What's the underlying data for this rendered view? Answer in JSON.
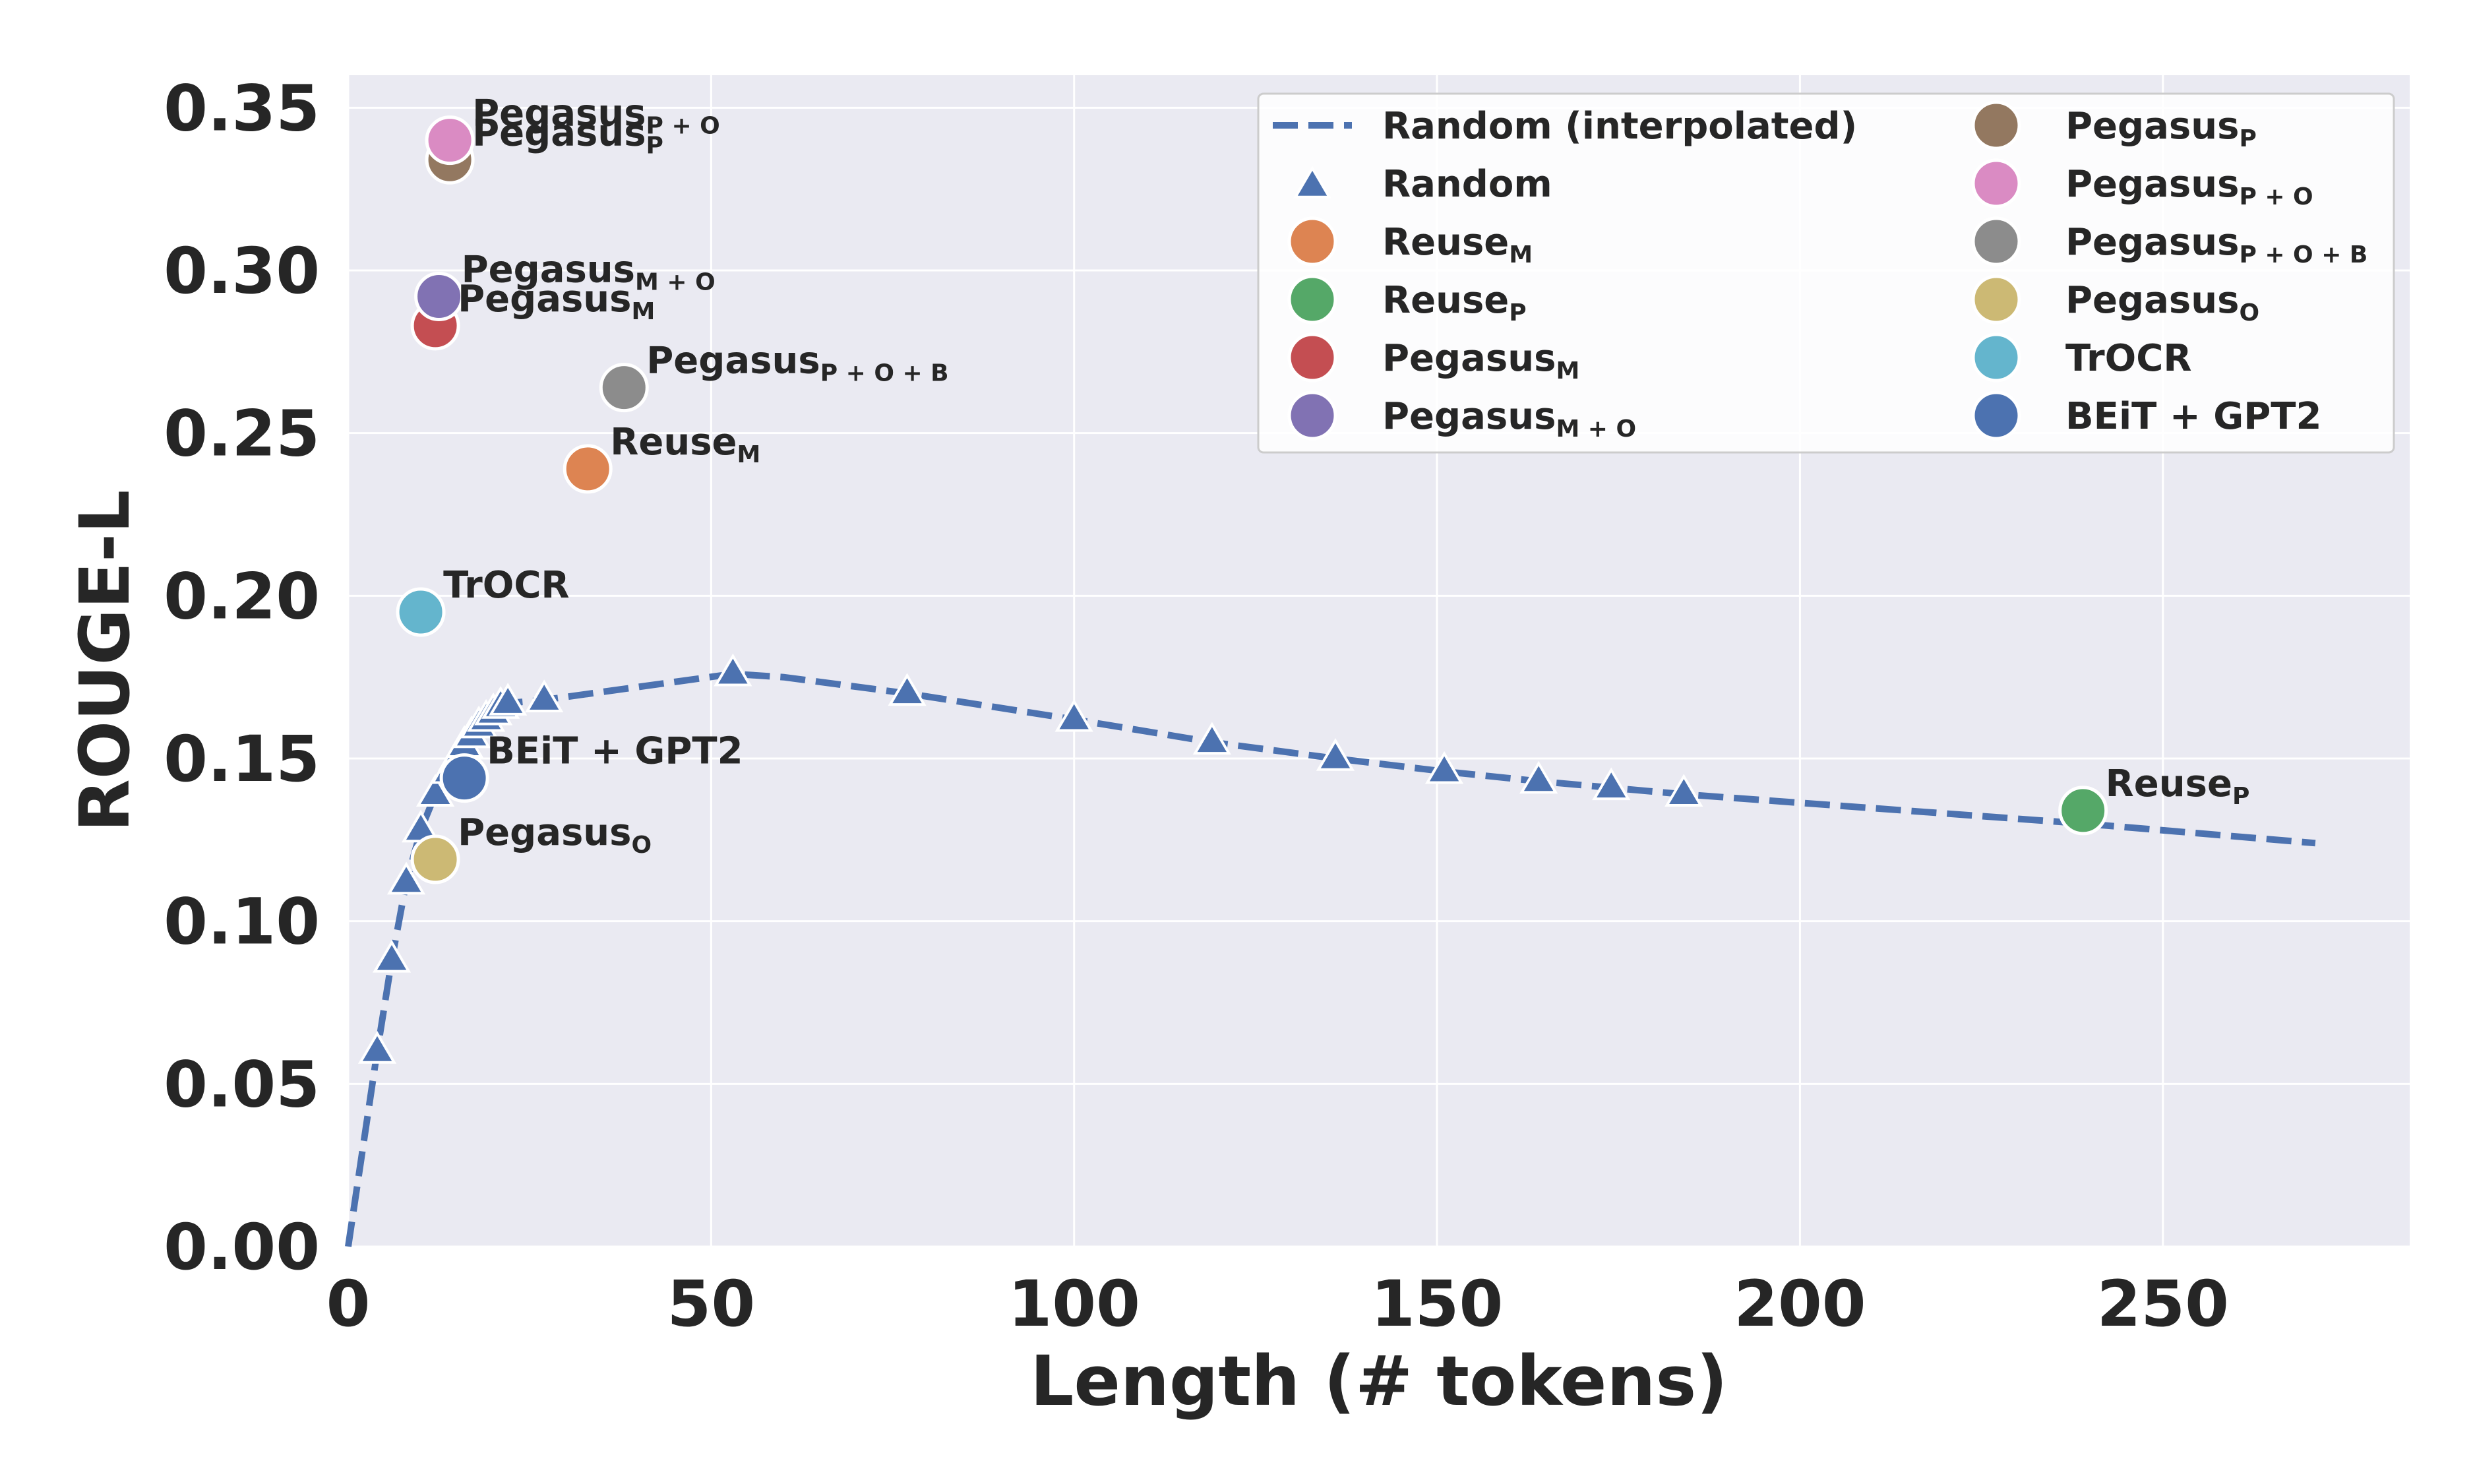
{
  "chart_data": {
    "type": "scatter",
    "xlabel": "Length (# tokens)",
    "ylabel": "ROUGE-L",
    "xlim": [
      0,
      284
    ],
    "ylim": [
      0,
      0.36
    ],
    "xticks": [
      0,
      50,
      100,
      150,
      200,
      250
    ],
    "xtick_labels": [
      "0",
      "50",
      "100",
      "150",
      "200",
      "250"
    ],
    "yticks": [
      0,
      0.05,
      0.1,
      0.15,
      0.2,
      0.25,
      0.3,
      0.35
    ],
    "ytick_labels": [
      "0.00",
      "0.05",
      "0.10",
      "0.15",
      "0.20",
      "0.25",
      "0.30",
      "0.35"
    ],
    "grid": true,
    "background": "#eaeaf2",
    "legend_position": "upper-right",
    "interpolated": {
      "label": "Random (interpolated)",
      "color": "#4c72b0",
      "x": [
        0,
        4,
        6,
        8,
        10,
        12,
        14,
        16,
        18,
        20,
        22,
        27,
        53,
        60,
        77,
        100,
        119,
        136,
        151,
        164,
        174,
        184,
        239,
        271
      ],
      "y": [
        0,
        0.06,
        0.088,
        0.112,
        0.128,
        0.139,
        0.148,
        0.155,
        0.16,
        0.164,
        0.167,
        0.168,
        0.176,
        0.175,
        0.17,
        0.162,
        0.155,
        0.15,
        0.146,
        0.143,
        0.141,
        0.139,
        0.13,
        0.124
      ]
    },
    "random": {
      "label": "Random",
      "color": "#4c72b0",
      "x": [
        4,
        6,
        8,
        10,
        12,
        14,
        15,
        16,
        17,
        18,
        19,
        20,
        21,
        22,
        27,
        53,
        77,
        100,
        119,
        136,
        151,
        164,
        174,
        184
      ],
      "y": [
        0.06,
        0.088,
        0.112,
        0.128,
        0.139,
        0.146,
        0.15,
        0.154,
        0.157,
        0.16,
        0.162,
        0.164,
        0.166,
        0.167,
        0.168,
        0.176,
        0.17,
        0.162,
        0.155,
        0.15,
        0.146,
        0.143,
        0.141,
        0.139
      ]
    },
    "models": [
      {
        "name": "Reuse",
        "sub": "M",
        "x": 33,
        "y": 0.239,
        "color": "#dd8452"
      },
      {
        "name": "Reuse",
        "sub": "P",
        "x": 239,
        "y": 0.134,
        "color": "#55a868"
      },
      {
        "name": "Pegasus",
        "sub": "M",
        "x": 12,
        "y": 0.283,
        "color": "#c44e52"
      },
      {
        "name": "Pegasus",
        "sub": "M + O",
        "x": 12.5,
        "y": 0.292,
        "color": "#8172b3"
      },
      {
        "name": "Pegasus",
        "sub": "P",
        "x": 14,
        "y": 0.334,
        "color": "#937860"
      },
      {
        "name": "Pegasus",
        "sub": "P + O",
        "x": 14,
        "y": 0.34,
        "color": "#da8bc3"
      },
      {
        "name": "Pegasus",
        "sub": "P + O + B",
        "x": 38,
        "y": 0.264,
        "color": "#8c8c8c"
      },
      {
        "name": "Pegasus",
        "sub": "O",
        "x": 12,
        "y": 0.119,
        "color": "#ccb974"
      },
      {
        "name": "TrOCR",
        "sub": "",
        "x": 10,
        "y": 0.195,
        "color": "#64b5cd"
      },
      {
        "name": "BEiT + GPT2",
        "sub": "",
        "x": 16,
        "y": 0.144,
        "color": "#4c72b0"
      }
    ],
    "legend": [
      {
        "name": "Random (interpolated)",
        "sub": "",
        "kind": "line",
        "color": "#4c72b0"
      },
      {
        "name": "Random",
        "sub": "",
        "kind": "triangle",
        "color": "#4c72b0"
      },
      {
        "name": "Reuse",
        "sub": "M",
        "kind": "circle",
        "color": "#dd8452"
      },
      {
        "name": "Reuse",
        "sub": "P",
        "kind": "circle",
        "color": "#55a868"
      },
      {
        "name": "Pegasus",
        "sub": "M",
        "kind": "circle",
        "color": "#c44e52"
      },
      {
        "name": "Pegasus",
        "sub": "M + O",
        "kind": "circle",
        "color": "#8172b3"
      },
      {
        "name": "Pegasus",
        "sub": "P",
        "kind": "circle",
        "color": "#937860"
      },
      {
        "name": "Pegasus",
        "sub": "P + O",
        "kind": "circle",
        "color": "#da8bc3"
      },
      {
        "name": "Pegasus",
        "sub": "P + O + B",
        "kind": "circle",
        "color": "#8c8c8c"
      },
      {
        "name": "Pegasus",
        "sub": "O",
        "kind": "circle",
        "color": "#ccb974"
      },
      {
        "name": "TrOCR",
        "sub": "",
        "kind": "circle",
        "color": "#64b5cd"
      },
      {
        "name": "BEiT + GPT2",
        "sub": "",
        "kind": "circle",
        "color": "#4c72b0"
      }
    ]
  }
}
